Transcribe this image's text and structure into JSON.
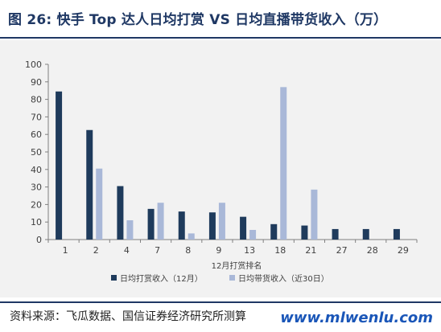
{
  "title": "图 26: 快手 Top 达人日均打赏 VS 日均直播带货收入（万）",
  "source": "资料来源：飞瓜数据、国信证券经济研究所测算",
  "watermark": "www.mlwenlu.com",
  "chart_data": {
    "type": "bar",
    "xlabel": "12月打赏排名",
    "ylim": [
      0,
      100
    ],
    "yticks": [
      0,
      10,
      20,
      30,
      40,
      50,
      60,
      70,
      80,
      90,
      100
    ],
    "categories": [
      "1",
      "2",
      "4",
      "7",
      "8",
      "9",
      "13",
      "18",
      "21",
      "27",
      "28",
      "29"
    ],
    "grid": false,
    "legend": "bottom",
    "series": [
      {
        "name": "日均打赏收入（12月）",
        "color": "#1f3b5c",
        "values": [
          84.5,
          62.5,
          30.5,
          17.5,
          16.0,
          15.5,
          13.0,
          8.8,
          8.0,
          6.0,
          6.0,
          6.0
        ]
      },
      {
        "name": "日均带货收入（近30日）",
        "color": "#a9b8d8",
        "values": [
          null,
          40.5,
          11.0,
          21.0,
          3.5,
          21.0,
          5.5,
          87.0,
          28.5,
          null,
          null,
          null
        ]
      }
    ]
  }
}
